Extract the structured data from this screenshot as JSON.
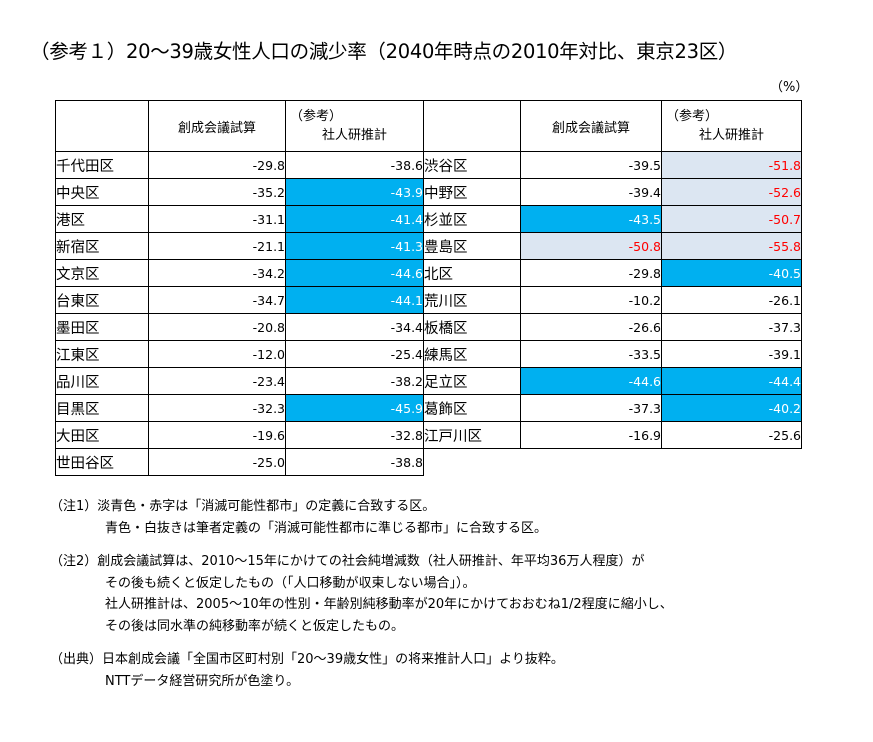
{
  "title": "（参考１）20～39歳女性人口の減少率（2040年時点の2010年対比、東京23区）",
  "unit": "（%）",
  "headers": {
    "col1": "創成会議試算",
    "col2_line1": "（参考）",
    "col2_line2": "社人研推計"
  },
  "colors": {
    "blue": "#00B0F0",
    "light_blue": "#DCE6F2",
    "red": "#FF0000"
  },
  "left_table": [
    {
      "ward": "千代田区",
      "a": "-29.8",
      "b": "-38.6",
      "a_style": "",
      "b_style": ""
    },
    {
      "ward": "中央区",
      "a": "-35.2",
      "b": "-43.9",
      "a_style": "",
      "b_style": "blue"
    },
    {
      "ward": "港区",
      "a": "-31.1",
      "b": "-41.4",
      "a_style": "",
      "b_style": "blue"
    },
    {
      "ward": "新宿区",
      "a": "-21.1",
      "b": "-41.3",
      "a_style": "",
      "b_style": "blue"
    },
    {
      "ward": "文京区",
      "a": "-34.2",
      "b": "-44.6",
      "a_style": "",
      "b_style": "blue"
    },
    {
      "ward": "台東区",
      "a": "-34.7",
      "b": "-44.1",
      "a_style": "",
      "b_style": "blue"
    },
    {
      "ward": "墨田区",
      "a": "-20.8",
      "b": "-34.4",
      "a_style": "",
      "b_style": ""
    },
    {
      "ward": "江東区",
      "a": "-12.0",
      "b": "-25.4",
      "a_style": "",
      "b_style": ""
    },
    {
      "ward": "品川区",
      "a": "-23.4",
      "b": "-38.2",
      "a_style": "",
      "b_style": ""
    },
    {
      "ward": "目黒区",
      "a": "-32.3",
      "b": "-45.9",
      "a_style": "",
      "b_style": "blue"
    },
    {
      "ward": "大田区",
      "a": "-19.6",
      "b": "-32.8",
      "a_style": "",
      "b_style": ""
    },
    {
      "ward": "世田谷区",
      "a": "-25.0",
      "b": "-38.8",
      "a_style": "",
      "b_style": ""
    }
  ],
  "right_table": [
    {
      "ward": "渋谷区",
      "a": "-39.5",
      "b": "-51.8",
      "a_style": "",
      "b_style": "light red"
    },
    {
      "ward": "中野区",
      "a": "-39.4",
      "b": "-52.6",
      "a_style": "",
      "b_style": "light red"
    },
    {
      "ward": "杉並区",
      "a": "-43.5",
      "b": "-50.7",
      "a_style": "blue",
      "b_style": "light red"
    },
    {
      "ward": "豊島区",
      "a": "-50.8",
      "b": "-55.8",
      "a_style": "light red",
      "b_style": "light red"
    },
    {
      "ward": "北区",
      "a": "-29.8",
      "b": "-40.5",
      "a_style": "",
      "b_style": "blue"
    },
    {
      "ward": "荒川区",
      "a": "-10.2",
      "b": "-26.1",
      "a_style": "",
      "b_style": ""
    },
    {
      "ward": "板橋区",
      "a": "-26.6",
      "b": "-37.3",
      "a_style": "",
      "b_style": ""
    },
    {
      "ward": "練馬区",
      "a": "-33.5",
      "b": "-39.1",
      "a_style": "",
      "b_style": ""
    },
    {
      "ward": "足立区",
      "a": "-44.6",
      "b": "-44.4",
      "a_style": "blue",
      "b_style": "blue"
    },
    {
      "ward": "葛飾区",
      "a": "-37.3",
      "b": "-40.2",
      "a_style": "",
      "b_style": "blue"
    },
    {
      "ward": "江戸川区",
      "a": "-16.9",
      "b": "-25.6",
      "a_style": "",
      "b_style": ""
    }
  ],
  "notes": {
    "n1_l1": "（注1）淡青色・赤字は「消滅可能性都市」の定義に合致する区。",
    "n1_l2": "青色・白抜きは筆者定義の「消滅可能性都市に準じる都市」に合致する区。",
    "n2_l1": "（注2）創成会議試算は、2010～15年にかけての社会純増減数（社人研推計、年平均36万人程度）が",
    "n2_l2": "その後も続くと仮定したもの（「人口移動が収束しない場合」）。",
    "n2_l3": "社人研推計は、2005～10年の性別・年齢別純移動率が20年にかけておおむね1/2程度に縮小し、",
    "n2_l4": "その後は同水準の純移動率が続くと仮定したもの。",
    "n3_l1": "（出典）日本創成会議「全国市区町村別「20～39歳女性」の将来推計人口」より抜粋。",
    "n3_l2": "NTTデータ経営研究所が色塗り。"
  }
}
